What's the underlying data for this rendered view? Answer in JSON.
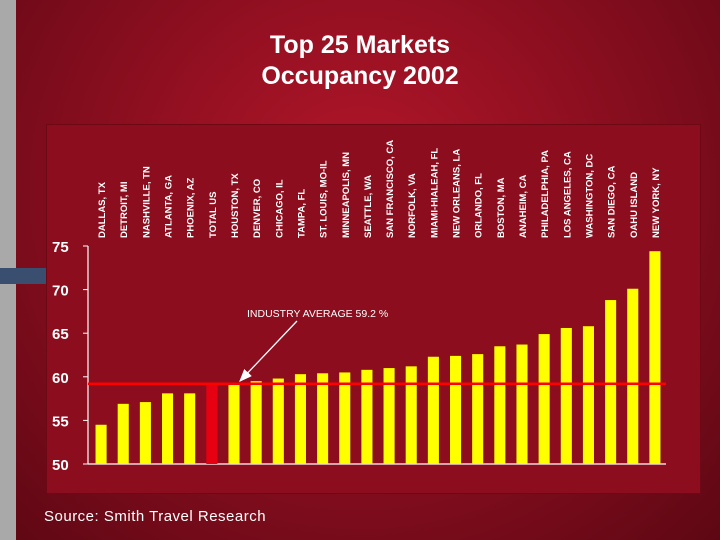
{
  "title_line1": "Top 25 Markets",
  "title_line2": "Occupancy 2002",
  "source": "Source: Smith Travel Research",
  "colors": {
    "bar": "#ffff00",
    "highlight_bar": "#e60012",
    "average_line": "#ff0000",
    "axis": "#ffffff",
    "background": "#8b0d1e"
  },
  "chart_data": {
    "type": "bar",
    "categories": [
      "DALLAS, TX",
      "DETROIT, MI",
      "NASHVILLE, TN",
      "ATLANTA, GA",
      "PHOENIX, AZ",
      "TOTAL US",
      "HOUSTON, TX",
      "DENVER, CO",
      "CHICAGO, IL",
      "TAMPA, FL",
      "ST. LOUIS, MO-IL",
      "MINNEAPOLIS, MN",
      "SEATTLE, WA",
      "SAN FRANCISCO, CA",
      "NORFOLK, VA",
      "MIAMI-HIALEAH, FL",
      "NEW ORLEANS, LA",
      "ORLANDO, FL",
      "BOSTON, MA",
      "ANAHEIM, CA",
      "PHILADELPHIA, PA",
      "LOS ANGELES, CA",
      "WASHINGTON, DC",
      "SAN DIEGO, CA",
      "OAHU ISLAND",
      "NEW YORK, NY"
    ],
    "values": [
      54.5,
      56.9,
      57.1,
      58.1,
      58.1,
      59.2,
      59.3,
      59.5,
      59.8,
      60.3,
      60.4,
      60.5,
      60.8,
      61.0,
      61.2,
      62.3,
      62.4,
      62.6,
      63.5,
      63.7,
      64.9,
      65.6,
      65.8,
      68.8,
      70.1,
      74.4
    ],
    "highlight_category": "TOTAL US",
    "y_ticks": [
      50,
      55,
      60,
      65,
      70,
      75
    ],
    "ylim": [
      50,
      75
    ],
    "reference_line": {
      "value": 59.2
    },
    "annotation": "INDUSTRY AVERAGE  59.2 %",
    "grid": false
  }
}
